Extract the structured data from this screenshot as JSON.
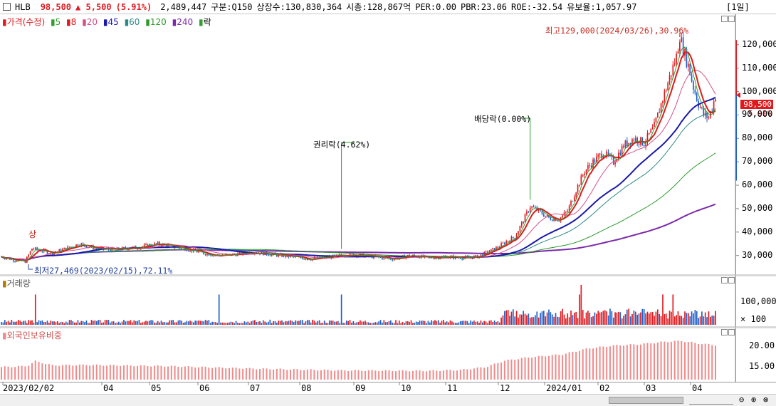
{
  "header": {
    "name": "HLB",
    "price": "98,500",
    "change": "▲ 5,500",
    "pct": "(5.91%)",
    "volume": "2,489,447",
    "market": "구분:Q150",
    "shares": "상장수:130,830,364",
    "mcap": "시총:128,867억",
    "per": "PER:0.00",
    "pbr": "PBR:23.06",
    "roe": "ROE:-32.54",
    "float": "유보율:1,057.97",
    "period": "[1일]"
  },
  "legend": {
    "price": "가격(수정)",
    "ma5": "5",
    "ma8": "8",
    "ma20": "20",
    "ma45": "45",
    "ma60": "60",
    "ma120": "120",
    "ma240": "240",
    "drop": "락"
  },
  "volume_legend": "거래량",
  "foreign_legend": "외국인보유비중",
  "annotations": {
    "high": "최고129,000(2024/03/26),30.96%",
    "low": "최저27,469(2023/02/15),72.11%",
    "rights": "권리락(4.62%)",
    "dividend": "배당락(0.00%)",
    "limit_up": "상"
  },
  "price_tag": {
    "value": "98,500",
    "pct": "5.91%"
  },
  "colors": {
    "up": "#e0191e",
    "down": "#1f5fc8",
    "ma5": "#2e9e2e",
    "ma8": "#e0191e",
    "ma20": "#d4508a",
    "ma45": "#1a1aa8",
    "ma60": "#2a8a86",
    "ma120": "#2a9a2a",
    "ma240": "#7a2aa8",
    "foreign": "#f08a8a"
  },
  "chart_data": {
    "type": "candlestick",
    "x_ticks": [
      "2023/02/02",
      "04",
      "05",
      "06",
      "07",
      "08",
      "09",
      "10",
      "11",
      "12",
      "2024/01",
      "02",
      "03",
      "04"
    ],
    "price_axis": {
      "ticks": [
        "120,000",
        "110,000",
        "100,000",
        "90,000",
        "80,000",
        "70,000",
        "60,000",
        "50,000",
        "40,000",
        "30,000"
      ],
      "ylim": [
        22000,
        133000
      ]
    },
    "volume_axis": {
      "ticks": [
        "100,000",
        "× 100"
      ]
    },
    "foreign_axis": {
      "ticks": [
        "20.00",
        "15.00"
      ]
    },
    "price_path": [
      [
        0,
        29500
      ],
      [
        8,
        28000
      ],
      [
        14,
        27469
      ],
      [
        18,
        33000
      ],
      [
        24,
        32000
      ],
      [
        30,
        31000
      ],
      [
        38,
        33000
      ],
      [
        46,
        35000
      ],
      [
        55,
        33000
      ],
      [
        66,
        32500
      ],
      [
        80,
        33500
      ],
      [
        92,
        35000
      ],
      [
        100,
        34000
      ],
      [
        108,
        33000
      ],
      [
        118,
        31000
      ],
      [
        128,
        30000
      ],
      [
        138,
        30500
      ],
      [
        148,
        31500
      ],
      [
        158,
        30500
      ],
      [
        170,
        29500
      ],
      [
        182,
        28500
      ],
      [
        194,
        29500
      ],
      [
        206,
        30500
      ],
      [
        218,
        29500
      ],
      [
        230,
        28500
      ],
      [
        240,
        30000
      ],
      [
        252,
        29000
      ],
      [
        262,
        29500
      ],
      [
        272,
        29000
      ],
      [
        280,
        29500
      ],
      [
        286,
        31500
      ],
      [
        292,
        33500
      ],
      [
        297,
        36000
      ],
      [
        302,
        38000
      ],
      [
        307,
        45000
      ],
      [
        311,
        51000
      ],
      [
        316,
        49000
      ],
      [
        322,
        46000
      ],
      [
        328,
        45500
      ],
      [
        333,
        49000
      ],
      [
        338,
        58000
      ],
      [
        343,
        66000
      ],
      [
        348,
        70000
      ],
      [
        354,
        74000
      ],
      [
        360,
        70000
      ],
      [
        366,
        77000
      ],
      [
        372,
        80000
      ],
      [
        378,
        78000
      ],
      [
        384,
        85000
      ],
      [
        389,
        97000
      ],
      [
        393,
        106000
      ],
      [
        397,
        115000
      ],
      [
        399,
        124000
      ],
      [
        401,
        118000
      ],
      [
        404,
        111000
      ],
      [
        407,
        102000
      ],
      [
        410,
        95000
      ],
      [
        413,
        90000
      ],
      [
        416,
        89000
      ],
      [
        418,
        93000
      ],
      [
        420,
        98500
      ]
    ],
    "total_days": 421,
    "foreign_path": [
      [
        0,
        15.0
      ],
      [
        15,
        15.2
      ],
      [
        20,
        16.4
      ],
      [
        30,
        15.4
      ],
      [
        50,
        15.5
      ],
      [
        100,
        15.2
      ],
      [
        150,
        14.6
      ],
      [
        200,
        14.2
      ],
      [
        250,
        14.1
      ],
      [
        270,
        14.3
      ],
      [
        285,
        15.0
      ],
      [
        296,
        16.5
      ],
      [
        310,
        17.3
      ],
      [
        330,
        18.0
      ],
      [
        345,
        19.4
      ],
      [
        360,
        20.1
      ],
      [
        375,
        20.4
      ],
      [
        390,
        21.0
      ],
      [
        400,
        21.2
      ],
      [
        410,
        20.6
      ],
      [
        420,
        20.2
      ]
    ],
    "foreign_ylim": [
      12,
      23
    ]
  }
}
